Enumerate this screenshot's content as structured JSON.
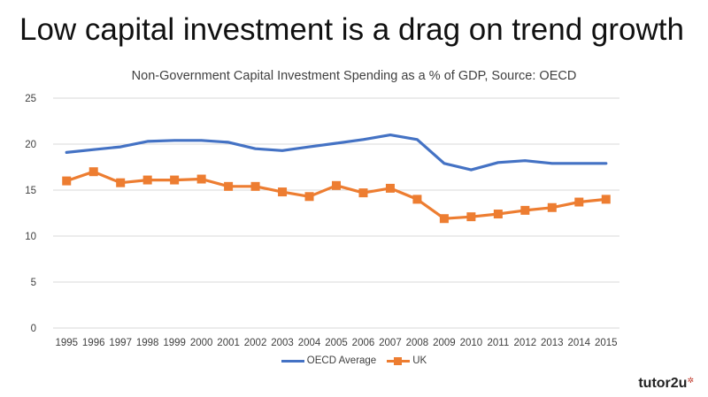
{
  "slide": {
    "title": "Low capital investment is a drag on trend growth",
    "brand": "tutor2u"
  },
  "colors": {
    "oecd": "#4472C4",
    "uk": "#ED7D31",
    "grid": "#D9D9D9"
  },
  "chart_data": {
    "type": "line",
    "title": "Non-Government Capital Investment Spending as a % of GDP, Source: OECD",
    "xlabel": "",
    "ylabel": "",
    "categories": [
      "1995",
      "1996",
      "1997",
      "1998",
      "1999",
      "2000",
      "2001",
      "2002",
      "2003",
      "2004",
      "2005",
      "2006",
      "2007",
      "2008",
      "2009",
      "2010",
      "2011",
      "2012",
      "2013",
      "2014",
      "2015"
    ],
    "ylim": [
      0,
      25
    ],
    "yticks": [
      0,
      5,
      10,
      15,
      20,
      25
    ],
    "grid": true,
    "legend_position": "bottom",
    "series": [
      {
        "name": "OECD Average",
        "color": "#4472C4",
        "markers": false,
        "values": [
          19.1,
          19.4,
          19.7,
          20.3,
          20.4,
          20.4,
          20.2,
          19.5,
          19.3,
          19.7,
          20.1,
          20.5,
          21.0,
          20.5,
          17.9,
          17.2,
          18.0,
          18.2,
          17.9,
          17.9,
          17.9
        ]
      },
      {
        "name": "UK",
        "color": "#ED7D31",
        "markers": true,
        "values": [
          16.0,
          17.0,
          15.8,
          16.1,
          16.1,
          16.2,
          15.4,
          15.4,
          14.8,
          14.3,
          15.5,
          14.7,
          15.2,
          14.0,
          11.9,
          12.1,
          12.4,
          12.8,
          13.1,
          13.7,
          14.0
        ]
      }
    ]
  }
}
